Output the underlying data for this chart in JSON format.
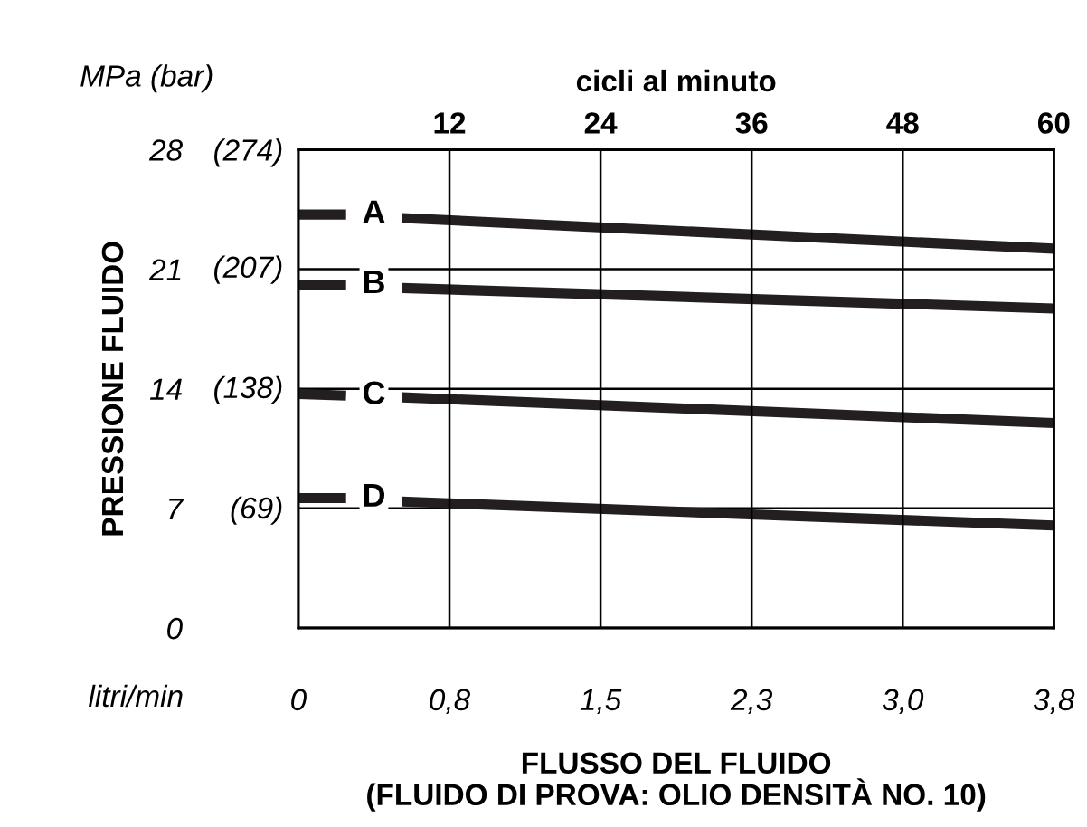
{
  "chart_data": {
    "type": "line",
    "xlabel": "FLUSSO DEL FLUIDO\n(FLUIDO DI PROVA: OLIO DENSITÀ NO. 10)",
    "ylabel": "PRESSIONE FLUIDO",
    "x2label": "cicli al minuto",
    "annotations": [
      "MPa (bar)",
      "litri/min",
      "A",
      "B",
      "C",
      "D"
    ],
    "x": [
      0,
      0.24,
      0.38,
      0.52,
      3.8
    ],
    "series": [
      {
        "color": "#231f20",
        "values": [
          24.2,
          24.2,
          null,
          24.0,
          22.2
        ]
      },
      {
        "color": "#231f20",
        "values": [
          20.1,
          20.1,
          null,
          19.9,
          18.7
        ]
      },
      {
        "color": "#231f20",
        "values": [
          13.7,
          13.6,
          null,
          13.5,
          12.0
        ]
      },
      {
        "color": "#231f20",
        "values": [
          7.6,
          7.6,
          null,
          7.4,
          6.0
        ]
      }
    ],
    "xlim": [
      0,
      3.8
    ],
    "xticks": [
      {
        "value": 0,
        "label": "0"
      },
      {
        "value": 0.76,
        "label": "0,8"
      },
      {
        "value": 1.52,
        "label": "1,5"
      },
      {
        "value": 2.28,
        "label": "2,3"
      },
      {
        "value": 3.04,
        "label": "3,0"
      },
      {
        "value": 3.8,
        "label": "3,8"
      }
    ],
    "x2lim": [
      0,
      60
    ],
    "x2ticks": [
      12,
      24,
      36,
      48,
      60
    ],
    "ylim": [
      0,
      28
    ],
    "yticks": [
      0,
      7,
      14,
      21,
      28
    ],
    "y2lim": [
      0,
      274
    ],
    "y2ticks": [
      {
        "value": 69,
        "label": "(69)"
      },
      {
        "value": 138,
        "label": "(138)"
      },
      {
        "value": 207,
        "label": "(207)"
      },
      {
        "value": 274,
        "label": "(274)"
      }
    ],
    "grid": true,
    "marker": "none",
    "line_style": "solid"
  }
}
